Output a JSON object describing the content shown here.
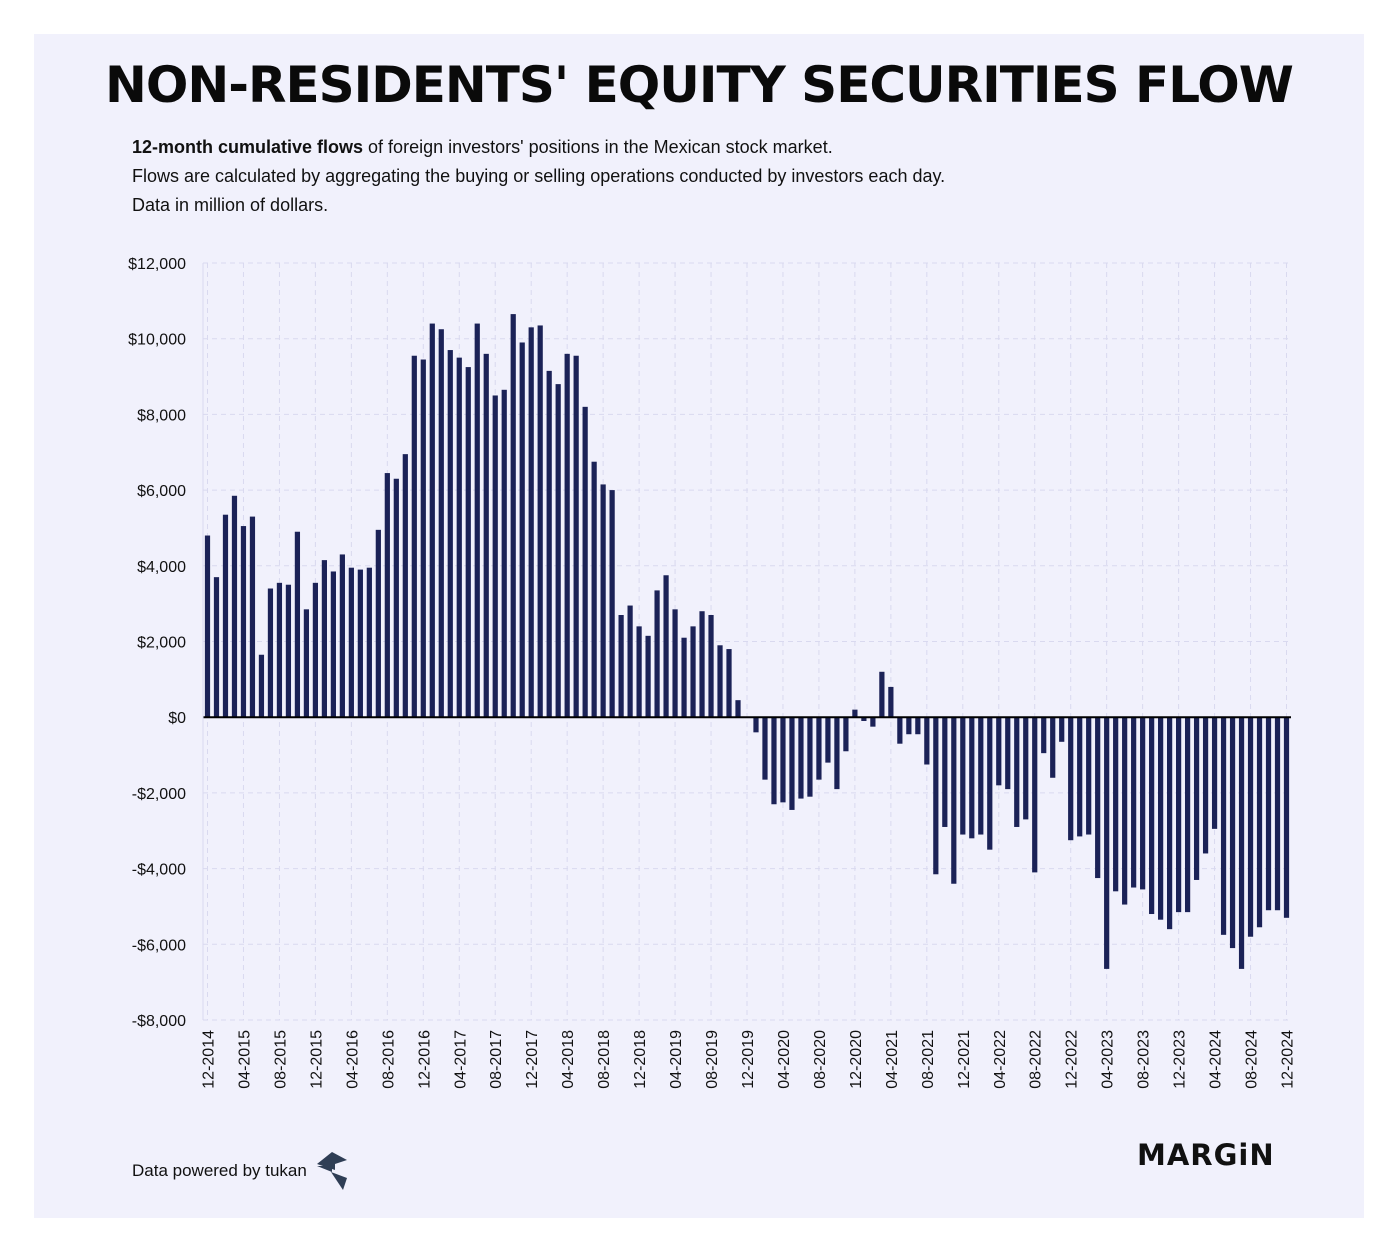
{
  "title": "NON-RESIDENTS' EQUITY SECURITIES FLOW",
  "subtitle": {
    "line1_bold": "12-month cumulative flows",
    "line1_rest": " of foreign investors' positions in the Mexican stock market.",
    "line2": "Flows are calculated by aggregating the buying or selling operations conducted by investors each day.",
    "line3": "Data in million of dollars."
  },
  "footer": {
    "source": "Data powered by tukan",
    "brand": "MARGiN"
  },
  "colors": {
    "bar": "#1b2257",
    "background": "#f1f1fc",
    "grid": "#d9d9ef",
    "zero_line": "#000000"
  },
  "chart_data": {
    "type": "bar",
    "x_tick_labels": [
      "12-2014",
      "04-2015",
      "08-2015",
      "12-2015",
      "04-2016",
      "08-2016",
      "12-2016",
      "04-2017",
      "08-2017",
      "12-2017",
      "04-2018",
      "08-2018",
      "12-2018",
      "04-2019",
      "08-2019",
      "12-2019",
      "04-2020",
      "08-2020",
      "12-2020",
      "04-2021",
      "08-2021",
      "12-2021",
      "04-2022",
      "08-2022",
      "12-2022",
      "04-2023",
      "08-2023",
      "12-2023",
      "04-2024",
      "08-2024",
      "12-2024"
    ],
    "y_tick_labels": [
      "$12,000",
      "$10,000",
      "$8,000",
      "$6,000",
      "$4,000",
      "$2,000",
      "$0",
      "-$2,000",
      "-$4,000",
      "-$6,000",
      "-$8,000"
    ],
    "y_ticks": [
      12000,
      10000,
      8000,
      6000,
      4000,
      2000,
      0,
      -2000,
      -4000,
      -6000,
      -8000
    ],
    "ylim": [
      -8000,
      12000
    ],
    "x_start": "12-2014",
    "frequency": "monthly",
    "grid": true,
    "values": [
      4800,
      3700,
      5350,
      5850,
      5050,
      5300,
      1650,
      3400,
      3550,
      3500,
      4900,
      2850,
      3550,
      4150,
      3850,
      4300,
      3950,
      3900,
      3950,
      4950,
      6450,
      6300,
      6950,
      9550,
      9450,
      10400,
      10250,
      9700,
      9500,
      9250,
      10400,
      9600,
      8500,
      8650,
      10650,
      9900,
      10300,
      10350,
      9150,
      8800,
      9600,
      9550,
      8200,
      6750,
      6150,
      6000,
      2700,
      2950,
      2400,
      2150,
      3350,
      3750,
      2850,
      2100,
      2400,
      2800,
      2700,
      1900,
      1800,
      450,
      0,
      -400,
      -1650,
      -2300,
      -2250,
      -2450,
      -2150,
      -2100,
      -1650,
      -1200,
      -1900,
      -900,
      200,
      -100,
      -250,
      1200,
      800,
      -700,
      -450,
      -450,
      -1250,
      -4150,
      -2900,
      -4400,
      -3100,
      -3200,
      -3100,
      -3500,
      -1800,
      -1900,
      -2900,
      -2700,
      -4100,
      -950,
      -1600,
      -650,
      -3250,
      -3150,
      -3100,
      -4250,
      -6650,
      -4600,
      -4950,
      -4500,
      -4550,
      -5200,
      -5350,
      -5600,
      -5150,
      -5150,
      -4300,
      -3600,
      -2950,
      -5750,
      -6100,
      -6650,
      -5800,
      -5550,
      -5100,
      -5100,
      -5300
    ]
  }
}
